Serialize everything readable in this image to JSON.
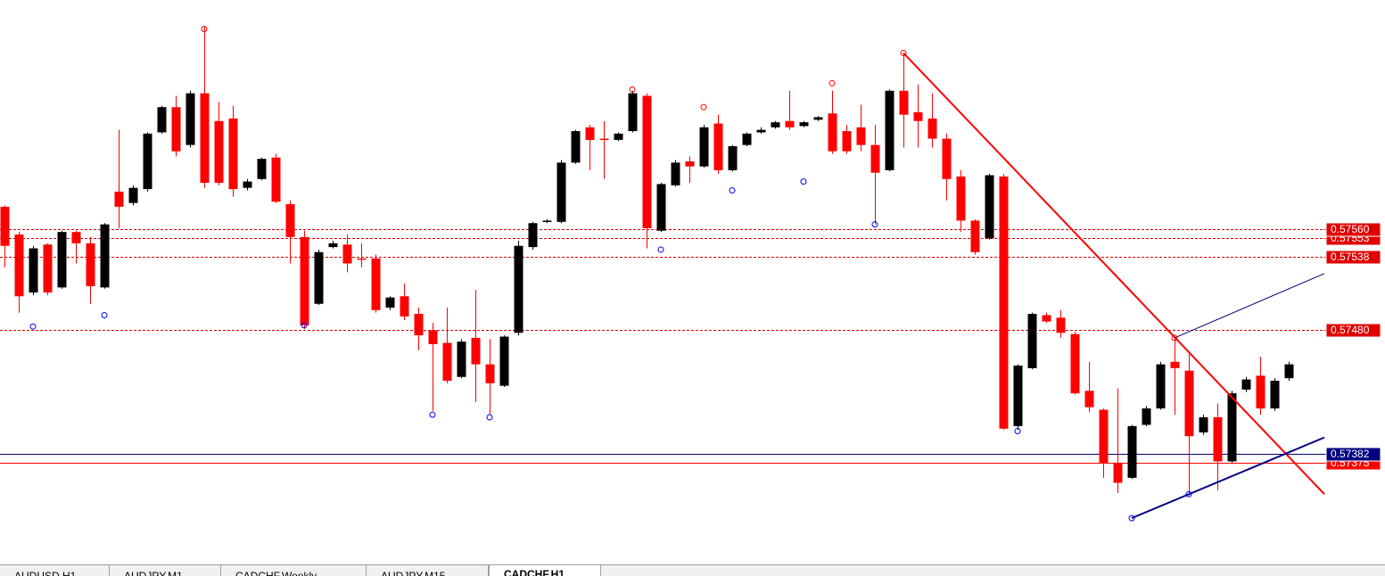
{
  "chart_data": {
    "type": "candlestick",
    "ylim": [
      0.57295,
      0.57742
    ],
    "up_color": "#000000",
    "down_color": "#ff0000",
    "open": [
      0.57578,
      0.57556,
      0.5751,
      0.57548,
      0.57514,
      0.57558,
      0.57549,
      0.57514,
      0.5759,
      0.57581,
      0.57592,
      0.57637,
      0.57657,
      0.57627,
      0.57668,
      0.57646,
      0.57648,
      0.57593,
      0.576,
      0.57617,
      0.5758,
      0.57554,
      0.57501,
      0.57546,
      0.57548,
      0.57537,
      0.57537,
      0.57498,
      0.57507,
      0.57493,
      0.5748,
      0.5747,
      0.57443,
      0.57474,
      0.57453,
      0.57436,
      0.57478,
      0.57546,
      0.57566,
      0.57566,
      0.57613,
      0.57641,
      0.57632,
      0.57631,
      0.57638,
      0.57666,
      0.57559,
      0.57595,
      0.57614,
      0.5761,
      0.57644,
      0.57607,
      0.57627,
      0.57637,
      0.57641,
      0.57646,
      0.57642,
      0.57647,
      0.57652,
      0.57638,
      0.57641,
      0.57627,
      0.57607,
      0.5767,
      0.57653,
      0.57648,
      0.57632,
      0.57602,
      0.57567,
      0.57553,
      0.57602,
      0.57404,
      0.5745,
      0.57492,
      0.5749,
      0.57477,
      0.57432,
      0.57417,
      0.57375,
      0.57363,
      0.57405,
      0.57418,
      0.57455,
      0.57448,
      0.57399,
      0.57411,
      0.57376,
      0.57433,
      0.57444,
      0.57418,
      0.57442
    ],
    "high": [
      0.57579,
      0.57558,
      0.57547,
      0.57549,
      0.57559,
      0.57559,
      0.57554,
      0.57565,
      0.57639,
      0.57595,
      0.57637,
      0.57658,
      0.57666,
      0.5767,
      0.57721,
      0.57661,
      0.57658,
      0.576,
      0.57617,
      0.5762,
      0.57583,
      0.57559,
      0.57544,
      0.57551,
      0.57556,
      0.57549,
      0.5754,
      0.57507,
      0.57517,
      0.57498,
      0.57486,
      0.57498,
      0.57473,
      0.57512,
      0.57473,
      0.57476,
      0.57551,
      0.57566,
      0.57568,
      0.57615,
      0.57639,
      0.57643,
      0.57646,
      0.57637,
      0.5767,
      0.57668,
      0.57597,
      0.57615,
      0.57618,
      0.57643,
      0.57651,
      0.57627,
      0.57637,
      0.57641,
      0.57646,
      0.5767,
      0.57646,
      0.5765,
      0.5767,
      0.57643,
      0.57659,
      0.57643,
      0.57671,
      0.577,
      0.57675,
      0.57668,
      0.57636,
      0.57607,
      0.57568,
      0.57604,
      0.57604,
      0.57453,
      0.57494,
      0.57494,
      0.57496,
      0.57479,
      0.57455,
      0.57418,
      0.57434,
      0.57405,
      0.5742,
      0.57455,
      0.57473,
      0.57462,
      0.57413,
      0.57422,
      0.57432,
      0.57443,
      0.57459,
      0.57442,
      0.57455
    ],
    "low": [
      0.5753,
      0.57494,
      0.57508,
      0.57508,
      0.57513,
      0.57533,
      0.57501,
      0.57513,
      0.57561,
      0.57579,
      0.5759,
      0.57636,
      0.57618,
      0.57625,
      0.57593,
      0.57595,
      0.57586,
      0.57591,
      0.57599,
      0.57581,
      0.57533,
      0.57481,
      0.575,
      0.57545,
      0.57526,
      0.5753,
      0.57494,
      0.57496,
      0.57488,
      0.57464,
      0.57416,
      0.57438,
      0.57442,
      0.57423,
      0.57413,
      0.57435,
      0.57476,
      0.57544,
      0.57565,
      0.57565,
      0.57612,
      0.57607,
      0.576,
      0.5763,
      0.57637,
      0.57545,
      0.57558,
      0.57594,
      0.57597,
      0.57609,
      0.57604,
      0.57606,
      0.57626,
      0.57636,
      0.5764,
      0.57639,
      0.57641,
      0.57646,
      0.5762,
      0.5762,
      0.57622,
      0.57564,
      0.57606,
      0.57625,
      0.57625,
      0.57625,
      0.57583,
      0.57558,
      0.5754,
      0.57552,
      0.57401,
      0.57401,
      0.57449,
      0.57486,
      0.57474,
      0.57429,
      0.57415,
      0.57363,
      0.57351,
      0.57362,
      0.57404,
      0.57417,
      0.57413,
      0.57349,
      0.57397,
      0.57353,
      0.57375,
      0.57431,
      0.57413,
      0.57416,
      0.5744
    ],
    "close": [
      0.57547,
      0.57507,
      0.57545,
      0.5751,
      0.57558,
      0.57549,
      0.57515,
      0.57564,
      0.57578,
      0.57593,
      0.57636,
      0.57657,
      0.57622,
      0.57668,
      0.57597,
      0.57597,
      0.57592,
      0.57598,
      0.57616,
      0.57582,
      0.57554,
      0.57484,
      0.57542,
      0.57549,
      0.57533,
      0.57536,
      0.57496,
      0.57506,
      0.57491,
      0.57476,
      0.57469,
      0.5744,
      0.57471,
      0.57453,
      0.57438,
      0.57475,
      0.57547,
      0.57565,
      0.57567,
      0.57613,
      0.57638,
      0.57631,
      0.57631,
      0.57636,
      0.57668,
      0.57561,
      0.57596,
      0.57613,
      0.5761,
      0.57641,
      0.57607,
      0.57626,
      0.57636,
      0.57639,
      0.57645,
      0.57641,
      0.57645,
      0.57649,
      0.57622,
      0.57622,
      0.57627,
      0.57605,
      0.5767,
      0.57651,
      0.57646,
      0.57632,
      0.576,
      0.57567,
      0.57542,
      0.57603,
      0.57402,
      0.57452,
      0.57493,
      0.57487,
      0.57478,
      0.5743,
      0.57419,
      0.57375,
      0.57359,
      0.57404,
      0.57418,
      0.57453,
      0.5745,
      0.57396,
      0.57411,
      0.57376,
      0.5743,
      0.57441,
      0.57418,
      0.5744,
      0.57453
    ],
    "levels": [
      {
        "value": 0.57553,
        "label": "0.57553",
        "color": "#e00000",
        "dashed": true
      },
      {
        "value": 0.5756,
        "label": "0.57560",
        "color": "#e00000",
        "dashed": true
      },
      {
        "value": 0.57538,
        "label": "0.57538",
        "color": "#e00000",
        "dashed": true
      },
      {
        "value": 0.5748,
        "label": "0.57480",
        "color": "#e00000",
        "dashed": true
      },
      {
        "value": 0.57375,
        "label": "0.57375",
        "color": "#ff0000",
        "dashed": false
      },
      {
        "value": 0.57382,
        "label": "0.57382",
        "color": "#000080",
        "dashed": false
      }
    ],
    "trendlines": [
      {
        "x": [
          63,
          92.5
        ],
        "y": [
          0.577,
          0.5735
        ],
        "color": "#ff0000",
        "width": 2
      },
      {
        "x": [
          79,
          92.5
        ],
        "y": [
          0.57331,
          0.57395
        ],
        "color": "#000080",
        "width": 2
      },
      {
        "x": [
          82,
          92.5
        ],
        "y": [
          0.57474,
          0.57525
        ],
        "color": "#000080",
        "width": 1
      }
    ],
    "markers": [
      {
        "x": 14,
        "value": 0.57719,
        "color": "#ff0000"
      },
      {
        "x": 44,
        "value": 0.57671,
        "color": "#ff0000"
      },
      {
        "x": 49,
        "value": 0.57657,
        "color": "#ff0000"
      },
      {
        "x": 58,
        "value": 0.57676,
        "color": "#ff0000"
      },
      {
        "x": 63,
        "value": 0.577,
        "color": "#ff0000"
      },
      {
        "x": 82,
        "value": 0.57474,
        "color": "#ff0000"
      },
      {
        "x": 2,
        "value": 0.57483,
        "color": "#0000ff"
      },
      {
        "x": 7,
        "value": 0.57492,
        "color": "#0000ff"
      },
      {
        "x": 21,
        "value": 0.57484,
        "color": "#0000ff"
      },
      {
        "x": 30,
        "value": 0.57413,
        "color": "#0000ff"
      },
      {
        "x": 34,
        "value": 0.57411,
        "color": "#0000ff"
      },
      {
        "x": 46,
        "value": 0.57544,
        "color": "#0000ff"
      },
      {
        "x": 51,
        "value": 0.57591,
        "color": "#0000ff"
      },
      {
        "x": 56,
        "value": 0.57598,
        "color": "#0000ff"
      },
      {
        "x": 61,
        "value": 0.57564,
        "color": "#0000ff"
      },
      {
        "x": 71,
        "value": 0.574,
        "color": "#0000ff"
      },
      {
        "x": 79,
        "value": 0.57331,
        "color": "#0000ff"
      },
      {
        "x": 83,
        "value": 0.5735,
        "color": "#0000ff"
      }
    ]
  },
  "tabs": [
    "AUDUSD,H1",
    "AUDJPY,M1",
    "CADCHF,Weekly",
    "AUDJPY,M15",
    "CADCHF,H1"
  ],
  "active_tab": 4
}
